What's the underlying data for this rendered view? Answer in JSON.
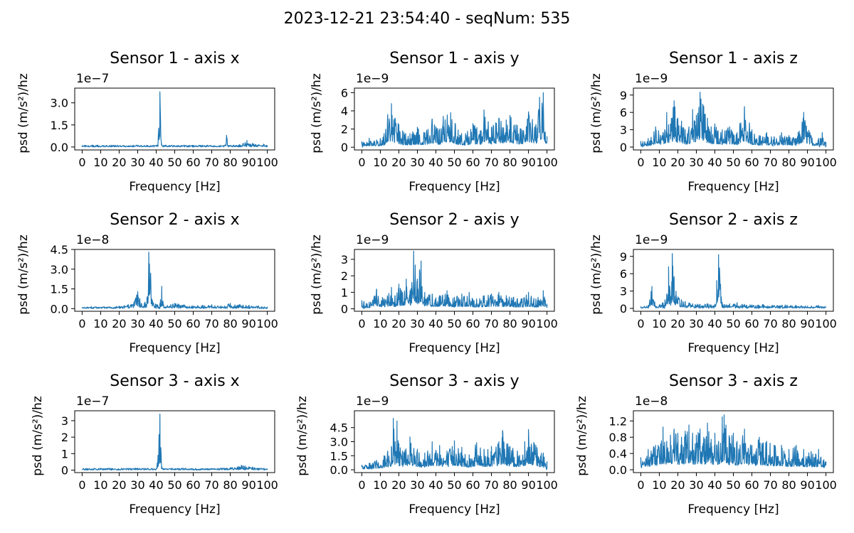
{
  "figure": {
    "suptitle": "2023-12-21 23:54:40 - seqNum: 535",
    "line_color": "#1f77b4"
  },
  "chart_data": [
    {
      "type": "line",
      "title": "Sensor 1 - axis x",
      "xlabel": "Frequency [Hz]",
      "ylabel": "psd (m/s²)/hz",
      "offset_text": "1e−7",
      "xlim": [
        0,
        100
      ],
      "ylim": [
        -0.2,
        4.0
      ],
      "x_ticks": [
        0,
        10,
        20,
        30,
        40,
        50,
        60,
        70,
        80,
        90,
        100
      ],
      "x_tick_labels": [
        "0",
        "10",
        "20",
        "30",
        "40",
        "50",
        "60",
        "70",
        "80",
        "90",
        "100"
      ],
      "y_ticks": [
        0.0,
        1.5,
        3.0
      ],
      "y_tick_labels": [
        "0.0",
        "1.5",
        "3.0"
      ],
      "series": [
        {
          "x": [
            0,
            5,
            10,
            15,
            20,
            25,
            30,
            35,
            38,
            40,
            41,
            42,
            43,
            44,
            45,
            50,
            55,
            60,
            65,
            70,
            75,
            77,
            78,
            79,
            80,
            85,
            87,
            88,
            89,
            90,
            92,
            95,
            98,
            100
          ],
          "y": [
            0.03,
            0.05,
            0.04,
            0.06,
            0.05,
            0.08,
            0.06,
            0.07,
            0.08,
            0.1,
            0.3,
            3.75,
            0.2,
            0.1,
            0.06,
            0.05,
            0.05,
            0.06,
            0.07,
            0.06,
            0.08,
            0.1,
            0.8,
            0.1,
            0.08,
            0.15,
            0.25,
            0.3,
            0.45,
            0.2,
            0.25,
            0.15,
            0.2,
            0.05
          ]
        }
      ]
    },
    {
      "type": "line",
      "title": "Sensor 1 - axis y",
      "xlabel": "Frequency [Hz]",
      "ylabel": "psd (m/s²)/hz",
      "offset_text": "1e−9",
      "xlim": [
        0,
        100
      ],
      "ylim": [
        -0.3,
        6.5
      ],
      "x_ticks": [
        0,
        10,
        20,
        30,
        40,
        50,
        60,
        70,
        80,
        90,
        100
      ],
      "x_tick_labels": [
        "0",
        "10",
        "20",
        "30",
        "40",
        "50",
        "60",
        "70",
        "80",
        "90",
        "100"
      ],
      "y_ticks": [
        0,
        2,
        4,
        6
      ],
      "y_tick_labels": [
        "0",
        "2",
        "4",
        "6"
      ],
      "series": [
        {
          "x": [
            0,
            4,
            8,
            12,
            14,
            16,
            18,
            20,
            22,
            26,
            30,
            34,
            38,
            42,
            44,
            48,
            52,
            56,
            60,
            64,
            66,
            70,
            74,
            78,
            80,
            84,
            86,
            90,
            94,
            96,
            98,
            100
          ],
          "y": [
            0.6,
            1.0,
            0.8,
            1.5,
            3.6,
            4.8,
            3.2,
            2.5,
            1.8,
            1.5,
            2.2,
            1.6,
            3.1,
            2.0,
            3.4,
            3.8,
            1.9,
            1.5,
            2.6,
            1.8,
            4.1,
            2.2,
            3.2,
            3.0,
            3.5,
            2.4,
            2.0,
            3.9,
            2.5,
            5.5,
            6.0,
            1.2
          ]
        }
      ]
    },
    {
      "type": "line",
      "title": "Sensor 1 - axis z",
      "xlabel": "Frequency [Hz]",
      "ylabel": "psd (m/s²)/hz",
      "offset_text": "1e−9",
      "xlim": [
        0,
        100
      ],
      "ylim": [
        -0.5,
        10.2
      ],
      "x_ticks": [
        0,
        10,
        20,
        30,
        40,
        50,
        60,
        70,
        80,
        90,
        100
      ],
      "x_tick_labels": [
        "0",
        "10",
        "20",
        "30",
        "40",
        "50",
        "60",
        "70",
        "80",
        "90",
        "100"
      ],
      "y_ticks": [
        0,
        3,
        6,
        9
      ],
      "y_tick_labels": [
        "0",
        "3",
        "6",
        "9"
      ],
      "series": [
        {
          "x": [
            0,
            4,
            8,
            12,
            14,
            16,
            18,
            20,
            22,
            24,
            26,
            28,
            30,
            32,
            34,
            36,
            38,
            40,
            44,
            48,
            52,
            56,
            60,
            64,
            68,
            72,
            76,
            80,
            84,
            88,
            92,
            96,
            98,
            100
          ],
          "y": [
            1.0,
            1.5,
            3.5,
            2.5,
            6.0,
            4.0,
            8.0,
            5.0,
            4.5,
            3.0,
            3.5,
            6.5,
            5.5,
            9.5,
            7.0,
            5.0,
            3.5,
            4.0,
            3.0,
            3.5,
            2.5,
            7.0,
            3.0,
            2.0,
            2.5,
            1.8,
            2.5,
            2.0,
            1.5,
            6.0,
            2.0,
            1.5,
            2.5,
            0.8
          ]
        }
      ]
    },
    {
      "type": "line",
      "title": "Sensor 2 - axis x",
      "xlabel": "Frequency [Hz]",
      "ylabel": "psd (m/s²)/hz",
      "offset_text": "1e−8",
      "xlim": [
        0,
        100
      ],
      "ylim": [
        -0.2,
        4.5
      ],
      "x_ticks": [
        0,
        10,
        20,
        30,
        40,
        50,
        60,
        70,
        80,
        90,
        100
      ],
      "x_tick_labels": [
        "0",
        "10",
        "20",
        "30",
        "40",
        "50",
        "60",
        "70",
        "80",
        "90",
        "100"
      ],
      "y_ticks": [
        0.0,
        1.5,
        3.0,
        4.5
      ],
      "y_tick_labels": [
        "0.0",
        "1.5",
        "3.0",
        "4.5"
      ],
      "series": [
        {
          "x": [
            0,
            5,
            10,
            15,
            20,
            25,
            28,
            30,
            32,
            34,
            35,
            36,
            37,
            38,
            40,
            42,
            43,
            44,
            46,
            50,
            55,
            60,
            65,
            70,
            75,
            80,
            85,
            90,
            95,
            100
          ],
          "y": [
            0.1,
            0.15,
            0.1,
            0.15,
            0.2,
            0.3,
            0.5,
            1.3,
            0.4,
            0.5,
            0.8,
            4.3,
            2.7,
            0.6,
            0.3,
            0.4,
            1.7,
            0.3,
            0.25,
            0.4,
            0.3,
            0.2,
            0.25,
            0.3,
            0.2,
            0.4,
            0.3,
            0.25,
            0.2,
            0.15
          ]
        }
      ]
    },
    {
      "type": "line",
      "title": "Sensor 2 - axis y",
      "xlabel": "Frequency [Hz]",
      "ylabel": "psd (m/s²)/hz",
      "offset_text": "1e−9",
      "xlim": [
        0,
        100
      ],
      "ylim": [
        -0.15,
        3.6
      ],
      "x_ticks": [
        0,
        10,
        20,
        30,
        40,
        50,
        60,
        70,
        80,
        90,
        100
      ],
      "x_tick_labels": [
        "0",
        "10",
        "20",
        "30",
        "40",
        "50",
        "60",
        "70",
        "80",
        "90",
        "100"
      ],
      "y_ticks": [
        0,
        1,
        2,
        3
      ],
      "y_tick_labels": [
        "0",
        "1",
        "2",
        "3"
      ],
      "series": [
        {
          "x": [
            0,
            4,
            8,
            12,
            16,
            18,
            20,
            22,
            24,
            26,
            27,
            28,
            30,
            32,
            34,
            38,
            42,
            46,
            50,
            54,
            58,
            62,
            66,
            70,
            74,
            78,
            82,
            86,
            90,
            94,
            98,
            100
          ],
          "y": [
            0.5,
            0.4,
            1.2,
            0.6,
            1.3,
            0.8,
            1.5,
            1.0,
            1.8,
            1.1,
            1.6,
            3.5,
            1.8,
            2.9,
            1.0,
            0.9,
            0.8,
            1.1,
            0.7,
            0.9,
            1.0,
            0.6,
            0.8,
            0.9,
            1.0,
            0.8,
            0.7,
            0.6,
            1.0,
            0.6,
            1.1,
            0.3
          ]
        }
      ]
    },
    {
      "type": "line",
      "title": "Sensor 2 - axis z",
      "xlabel": "Frequency [Hz]",
      "ylabel": "psd (m/s²)/hz",
      "offset_text": "1e−9",
      "xlim": [
        0,
        100
      ],
      "ylim": [
        -0.5,
        10.2
      ],
      "x_ticks": [
        0,
        10,
        20,
        30,
        40,
        50,
        60,
        70,
        80,
        90,
        100
      ],
      "x_tick_labels": [
        "0",
        "10",
        "20",
        "30",
        "40",
        "50",
        "60",
        "70",
        "80",
        "90",
        "100"
      ],
      "y_ticks": [
        0,
        3,
        6,
        9
      ],
      "y_tick_labels": [
        "0",
        "3",
        "6",
        "9"
      ],
      "series": [
        {
          "x": [
            0,
            4,
            6,
            8,
            10,
            12,
            14,
            15,
            16,
            17,
            18,
            19,
            20,
            22,
            24,
            28,
            32,
            36,
            38,
            40,
            41,
            42,
            44,
            48,
            52,
            56,
            60,
            66,
            72,
            78,
            84,
            90,
            96,
            100
          ],
          "y": [
            0.3,
            0.5,
            3.8,
            0.4,
            0.6,
            1.0,
            2.5,
            7.2,
            1.8,
            9.5,
            5.5,
            3.0,
            2.0,
            1.5,
            1.2,
            0.8,
            0.7,
            0.8,
            0.6,
            0.7,
            4.8,
            9.3,
            1.0,
            0.8,
            1.0,
            0.7,
            0.6,
            0.7,
            0.5,
            0.6,
            0.5,
            0.4,
            0.5,
            0.3
          ]
        }
      ]
    },
    {
      "type": "line",
      "title": "Sensor 3 - axis x",
      "xlabel": "Frequency [Hz]",
      "ylabel": "psd (m/s²)/hz",
      "offset_text": "1e−7",
      "xlim": [
        0,
        100
      ],
      "ylim": [
        -0.15,
        3.6
      ],
      "x_ticks": [
        0,
        10,
        20,
        30,
        40,
        50,
        60,
        70,
        80,
        90,
        100
      ],
      "x_tick_labels": [
        "0",
        "10",
        "20",
        "30",
        "40",
        "50",
        "60",
        "70",
        "80",
        "90",
        "100"
      ],
      "y_ticks": [
        0,
        1,
        2,
        3
      ],
      "y_tick_labels": [
        "0",
        "1",
        "2",
        "3"
      ],
      "series": [
        {
          "x": [
            0,
            5,
            10,
            15,
            20,
            25,
            30,
            35,
            38,
            40,
            41,
            42,
            43,
            44,
            46,
            50,
            55,
            60,
            65,
            70,
            75,
            80,
            84,
            86,
            88,
            90,
            92,
            95,
            98,
            100
          ],
          "y": [
            0.03,
            0.04,
            0.04,
            0.05,
            0.05,
            0.06,
            0.05,
            0.06,
            0.08,
            0.1,
            0.9,
            3.4,
            0.2,
            0.1,
            0.08,
            0.07,
            0.06,
            0.07,
            0.08,
            0.1,
            0.12,
            0.15,
            0.2,
            0.3,
            0.25,
            0.2,
            0.18,
            0.12,
            0.1,
            0.05
          ]
        }
      ]
    },
    {
      "type": "line",
      "title": "Sensor 3 - axis y",
      "xlabel": "Frequency [Hz]",
      "ylabel": "psd (m/s²)/hz",
      "offset_text": "1e−9",
      "xlim": [
        0,
        100
      ],
      "ylim": [
        -0.3,
        6.3
      ],
      "x_ticks": [
        0,
        10,
        20,
        30,
        40,
        50,
        60,
        70,
        80,
        90,
        100
      ],
      "x_tick_labels": [
        "0",
        "10",
        "20",
        "30",
        "40",
        "50",
        "60",
        "70",
        "80",
        "90",
        "100"
      ],
      "y_ticks": [
        0.0,
        1.5,
        3.0,
        4.5
      ],
      "y_tick_labels": [
        "0.0",
        "1.5",
        "3.0",
        "4.5"
      ],
      "series": [
        {
          "x": [
            0,
            4,
            8,
            12,
            14,
            16,
            17,
            18,
            19,
            20,
            22,
            26,
            30,
            34,
            38,
            42,
            46,
            50,
            54,
            58,
            62,
            66,
            70,
            74,
            76,
            80,
            84,
            88,
            90,
            94,
            98,
            100
          ],
          "y": [
            0.5,
            0.7,
            1.0,
            1.5,
            2.0,
            2.5,
            5.5,
            3.0,
            5.2,
            2.8,
            2.0,
            3.5,
            2.2,
            1.8,
            3.0,
            2.6,
            2.0,
            3.1,
            2.4,
            1.6,
            2.9,
            2.2,
            2.5,
            3.0,
            4.2,
            2.5,
            2.0,
            3.0,
            4.3,
            2.6,
            1.8,
            0.9
          ]
        }
      ]
    },
    {
      "type": "line",
      "title": "Sensor 3 - axis z",
      "xlabel": "Frequency [Hz]",
      "ylabel": "psd (m/s²)/hz",
      "offset_text": "1e−8",
      "xlim": [
        0,
        100
      ],
      "ylim": [
        -0.07,
        1.45
      ],
      "x_ticks": [
        0,
        10,
        20,
        30,
        40,
        50,
        60,
        70,
        80,
        90,
        100
      ],
      "x_tick_labels": [
        "0",
        "10",
        "20",
        "30",
        "40",
        "50",
        "60",
        "70",
        "80",
        "90",
        "100"
      ],
      "y_ticks": [
        0.0,
        0.4,
        0.8,
        1.2
      ],
      "y_tick_labels": [
        "0.0",
        "0.4",
        "0.8",
        "1.2"
      ],
      "series": [
        {
          "x": [
            0,
            4,
            8,
            12,
            14,
            16,
            18,
            20,
            22,
            24,
            26,
            28,
            30,
            32,
            34,
            36,
            38,
            40,
            42,
            44,
            45,
            46,
            48,
            50,
            52,
            56,
            60,
            64,
            68,
            72,
            76,
            80,
            84,
            88,
            92,
            96,
            100
          ],
          "y": [
            0.3,
            0.5,
            0.6,
            1.05,
            0.7,
            0.85,
            1.0,
            0.9,
            0.8,
            0.95,
            1.1,
            0.9,
            0.85,
            1.0,
            0.8,
            1.15,
            0.75,
            0.9,
            0.7,
            1.3,
            1.35,
            1.1,
            0.8,
            0.9,
            0.7,
            1.0,
            0.6,
            0.8,
            0.7,
            0.6,
            0.6,
            0.5,
            0.6,
            0.5,
            0.45,
            0.5,
            0.2
          ]
        }
      ]
    }
  ]
}
